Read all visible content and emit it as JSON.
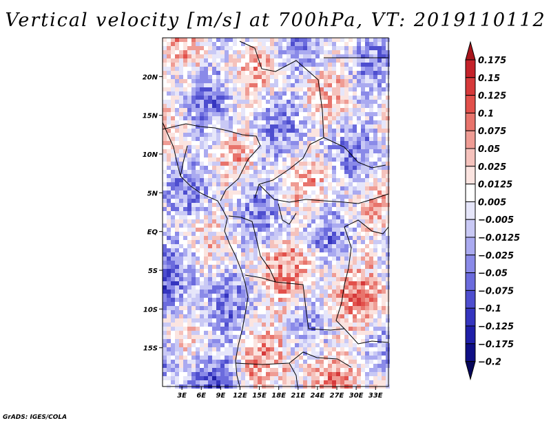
{
  "chart_data": {
    "type": "heatmap",
    "title": "Vertical velocity [m/s] at 700hPa, VT: 2019110112",
    "x_ticks": [
      "3E",
      "6E",
      "9E",
      "12E",
      "15E",
      "18E",
      "21E",
      "24E",
      "27E",
      "30E",
      "33E"
    ],
    "y_ticks": [
      "20N",
      "15N",
      "10N",
      "5N",
      "EQ",
      "5S",
      "10S",
      "15S"
    ],
    "lon_range": [
      0,
      35
    ],
    "lat_range": [
      -20,
      25
    ],
    "colorbar": {
      "levels": [
        "0.175",
        "0.15",
        "0.125",
        "0.1",
        "0.075",
        "0.05",
        "0.025",
        "0.0125",
        "0.005",
        "-0.005",
        "-0.0125",
        "-0.025",
        "-0.05",
        "-0.075",
        "-0.1",
        "-0.125",
        "-0.175",
        "-0.2"
      ],
      "colors": [
        "#a8151c",
        "#c4222a",
        "#d6393a",
        "#e2504b",
        "#e8746c",
        "#ef9c94",
        "#f5c2bc",
        "#fbe4e0",
        "#ffffff",
        "#e6e6fa",
        "#c9c9f5",
        "#aaaaf0",
        "#8a8ae8",
        "#6b6bdd",
        "#4e4ecf",
        "#3535bf",
        "#1f1fa8",
        "#0f0f85",
        "#07075a"
      ]
    }
  },
  "footer": "GrADS: IGES/COLA"
}
